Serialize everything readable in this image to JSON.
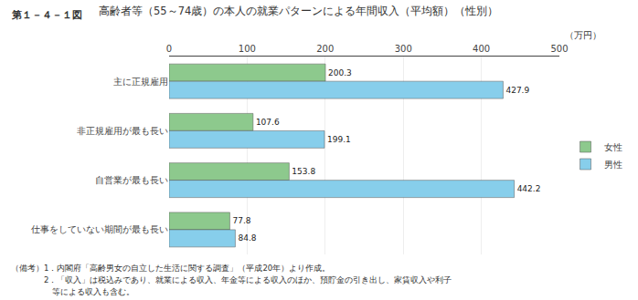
{
  "chart_data": {
    "type": "bar",
    "orientation": "horizontal",
    "title": "高齢者等（55～74歳）の本人の就業パターンによる年間収入（平均額）（性別）",
    "annotations": [
      "第１－４－１図",
      "（備考）1．内閣府「高齢男女の自立した生活に関する調査」（平成20年）より作成。",
      "　　　　2．「収入」は税込みであり、就業による収入、年金等による収入のほか、預貯金の引き出し、家賃収入や利子",
      "　　　　　等による収入も含む。"
    ],
    "categories": [
      "主に正規雇用",
      "非正規雇用が最も長い",
      "自営業が最も長い",
      "仕事をしていない期間が最も長い"
    ],
    "series": [
      {
        "name": "女性",
        "color": "#8DC98D",
        "values": [
          200.3,
          107.6,
          153.8,
          77.8
        ]
      },
      {
        "name": "男性",
        "color": "#87CEEB",
        "values": [
          427.9,
          199.1,
          442.2,
          84.8
        ]
      }
    ],
    "xlabel": "（万円）",
    "xlim": [
      0,
      500
    ],
    "xticks": [
      0,
      100,
      200,
      300,
      400,
      500
    ],
    "grid": true,
    "legend": "right",
    "data_labels": true
  }
}
